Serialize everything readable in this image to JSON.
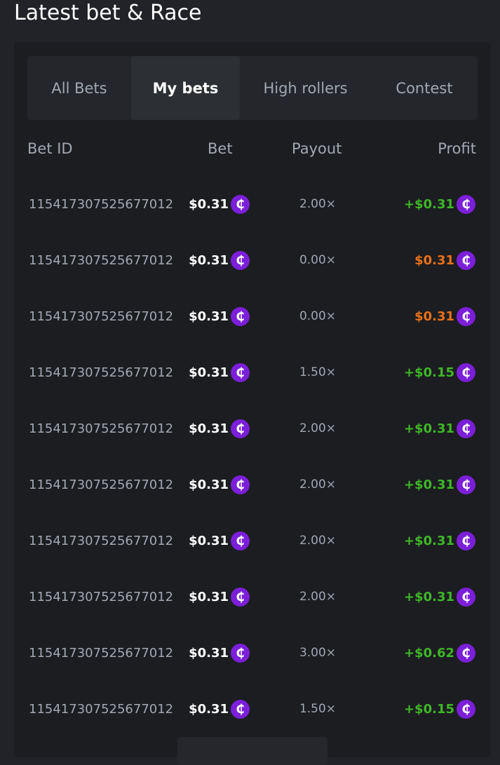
{
  "title": "Latest bet & Race",
  "tabs": [
    {
      "label": "All Bets"
    },
    {
      "label": "My bets",
      "active": true
    },
    {
      "label": "High rollers"
    },
    {
      "label": "Contest"
    }
  ],
  "columns": {
    "id": "Bet ID",
    "bet": "Bet",
    "payout": "Payout",
    "profit": "Profit"
  },
  "coin_icon": "₵",
  "colors": {
    "win": "#3fb728",
    "loss": "#e8711a",
    "coin": "#7b1fd8"
  },
  "rows": [
    {
      "id": "115417307525677012",
      "bet": "$0.31",
      "payout": "2.00×",
      "profit": "+$0.31",
      "win": true
    },
    {
      "id": "115417307525677012",
      "bet": "$0.31",
      "payout": "0.00×",
      "profit": "$0.31",
      "win": false
    },
    {
      "id": "115417307525677012",
      "bet": "$0.31",
      "payout": "0.00×",
      "profit": "$0.31",
      "win": false
    },
    {
      "id": "115417307525677012",
      "bet": "$0.31",
      "payout": "1.50×",
      "profit": "+$0.15",
      "win": true
    },
    {
      "id": "115417307525677012",
      "bet": "$0.31",
      "payout": "2.00×",
      "profit": "+$0.31",
      "win": true
    },
    {
      "id": "115417307525677012",
      "bet": "$0.31",
      "payout": "2.00×",
      "profit": "+$0.31",
      "win": true
    },
    {
      "id": "115417307525677012",
      "bet": "$0.31",
      "payout": "2.00×",
      "profit": "+$0.31",
      "win": true
    },
    {
      "id": "115417307525677012",
      "bet": "$0.31",
      "payout": "2.00×",
      "profit": "+$0.31",
      "win": true
    },
    {
      "id": "115417307525677012",
      "bet": "$0.31",
      "payout": "3.00×",
      "profit": "+$0.62",
      "win": true
    },
    {
      "id": "115417307525677012",
      "bet": "$0.31",
      "payout": "1.50×",
      "profit": "+$0.15",
      "win": true
    }
  ]
}
